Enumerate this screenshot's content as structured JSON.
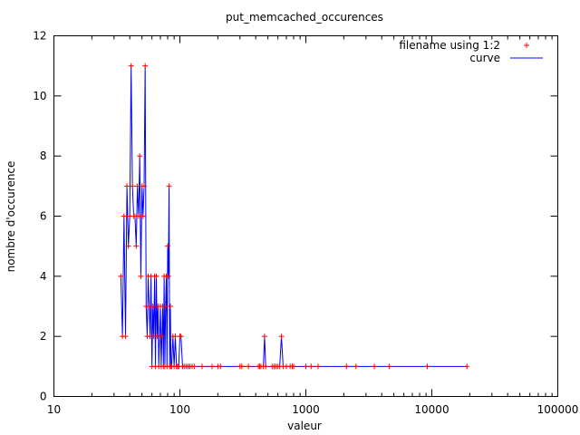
{
  "chart_data": {
    "type": "line",
    "title": "put_memcached_occurences",
    "xlabel": "valeur",
    "ylabel": "nombre d'occurence",
    "x_scale": "log",
    "xlim": [
      10,
      100000
    ],
    "ylim": [
      0,
      12
    ],
    "x_ticks": [
      {
        "value": 10,
        "label": "10"
      },
      {
        "value": 100,
        "label": "100"
      },
      {
        "value": 1000,
        "label": "1000"
      },
      {
        "value": 10000,
        "label": "10000"
      },
      {
        "value": 100000,
        "label": "100000"
      }
    ],
    "y_ticks": [
      {
        "value": 0,
        "label": "0"
      },
      {
        "value": 2,
        "label": "2"
      },
      {
        "value": 4,
        "label": "4"
      },
      {
        "value": 6,
        "label": "6"
      },
      {
        "value": 8,
        "label": "8"
      },
      {
        "value": 10,
        "label": "10"
      },
      {
        "value": 12,
        "label": "12"
      }
    ],
    "grid": false,
    "legend_position": "top-right",
    "series": [
      {
        "name": "filename using 1:2",
        "style": "points",
        "marker": "+",
        "color": "#ff0000"
      },
      {
        "name": "curve",
        "style": "line",
        "color": "#0000ff"
      }
    ],
    "x": [
      34,
      35,
      36,
      37,
      38,
      39,
      40,
      41,
      42,
      43,
      44,
      45,
      46,
      47,
      48,
      49,
      50,
      51,
      52,
      53,
      54,
      55,
      56,
      57,
      58,
      59,
      60,
      61,
      62,
      63,
      64,
      65,
      66,
      67,
      68,
      69,
      70,
      71,
      72,
      73,
      74,
      75,
      76,
      77,
      78,
      79,
      80,
      81,
      82,
      83,
      84,
      85,
      86,
      88,
      90,
      92,
      94,
      96,
      98,
      100,
      102,
      105,
      108,
      112,
      116,
      120,
      125,
      130,
      150,
      180,
      200,
      210,
      300,
      310,
      350,
      420,
      430,
      440,
      460,
      470,
      480,
      540,
      560,
      580,
      600,
      620,
      640,
      660,
      700,
      750,
      780,
      800,
      1000,
      1100,
      1250,
      2100,
      2500,
      3500,
      4600,
      9200,
      19000
    ],
    "values": [
      4,
      2,
      6,
      2,
      7,
      5,
      6,
      11,
      7,
      6,
      6,
      5,
      7,
      6,
      8,
      4,
      7,
      6,
      7,
      11,
      3,
      2,
      4,
      3,
      2,
      4,
      1,
      3,
      2,
      4,
      1,
      4,
      2,
      3,
      1,
      2,
      3,
      1,
      2,
      3,
      1,
      4,
      1,
      3,
      4,
      1,
      5,
      4,
      7,
      1,
      3,
      1,
      1,
      2,
      1,
      2,
      1,
      1,
      1,
      2,
      2,
      1,
      1,
      1,
      1,
      1,
      1,
      1,
      1,
      1,
      1,
      1,
      1,
      1,
      1,
      1,
      1,
      1,
      1,
      2,
      1,
      1,
      1,
      1,
      1,
      1,
      2,
      1,
      1,
      1,
      1,
      1,
      1,
      1,
      1,
      1,
      1,
      1,
      1,
      1,
      1
    ]
  }
}
